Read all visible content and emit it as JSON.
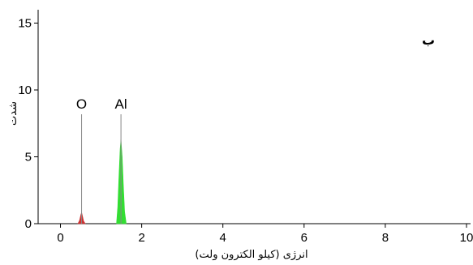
{
  "chart_data": {
    "type": "area",
    "title": "",
    "xlabel": "انرژی (کیلو الکترون ولت)",
    "ylabel": "شدت",
    "panel_label": "ب",
    "xlim": [
      -0.55,
      10.1
    ],
    "ylim": [
      0,
      16
    ],
    "xticks": [
      0,
      2,
      4,
      6,
      8,
      10
    ],
    "yticks": [
      0,
      5,
      10,
      15
    ],
    "grid": false,
    "peak_labels": [
      {
        "element": "O",
        "energy": 0.52
      },
      {
        "element": "Al",
        "energy": 1.49
      }
    ],
    "series": [
      {
        "element": "O",
        "color": "#cc3333",
        "x": [
          0.43,
          0.47,
          0.5,
          0.52,
          0.54,
          0.57,
          0.61
        ],
        "y": [
          0,
          0.25,
          0.65,
          0.85,
          0.6,
          0.2,
          0
        ]
      },
      {
        "element": "Al",
        "color": "#33dd33",
        "x": [
          1.38,
          1.41,
          1.44,
          1.47,
          1.49,
          1.52,
          1.55,
          1.58,
          1.62
        ],
        "y": [
          0,
          1.2,
          3.5,
          5.6,
          6.3,
          5.0,
          2.8,
          0.9,
          0
        ]
      }
    ],
    "line_colors": {
      "axes": "#000000",
      "marker": "#888888"
    }
  }
}
